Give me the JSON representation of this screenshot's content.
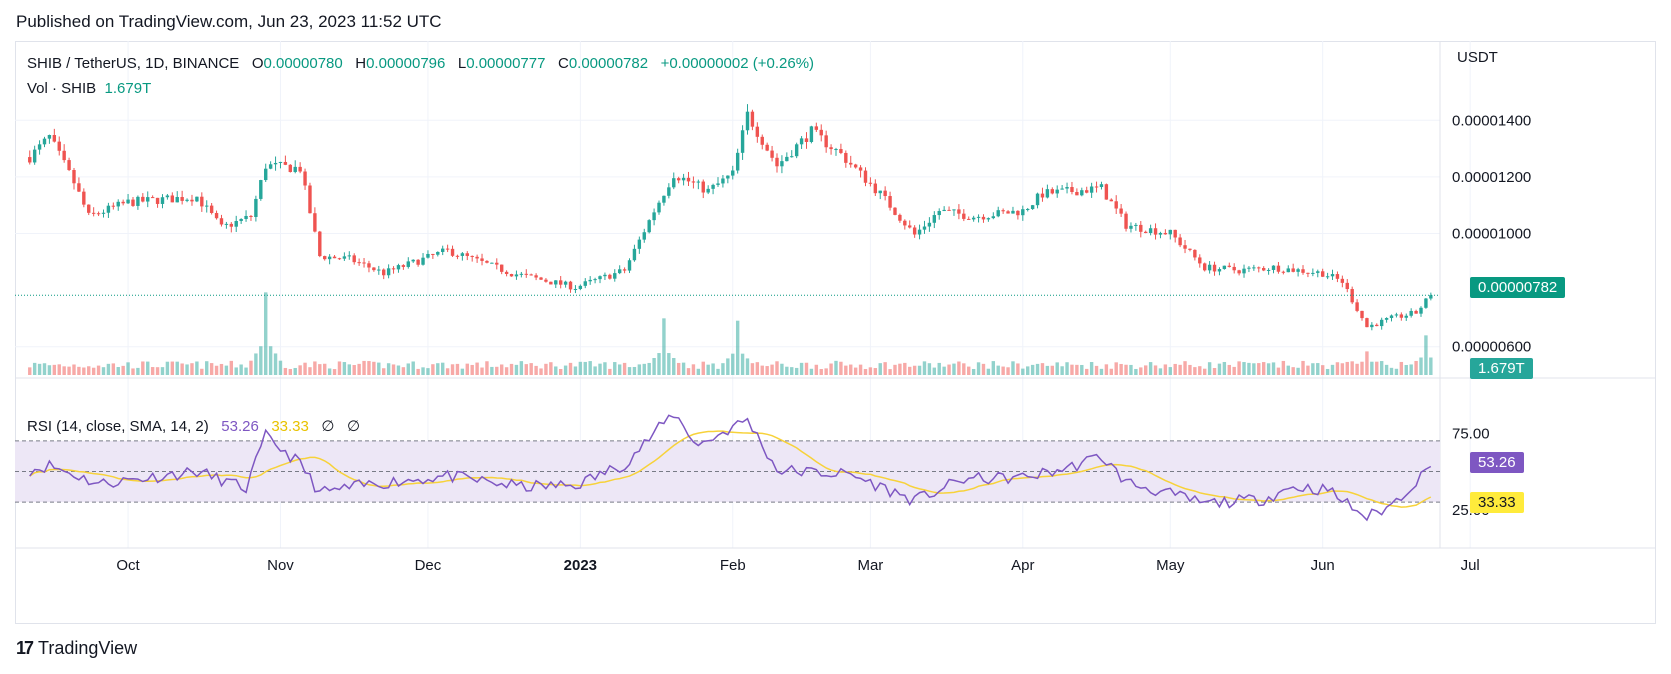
{
  "published": "Published on TradingView.com, Jun 23, 2023 11:52 UTC",
  "brand": {
    "logo": "17",
    "name": "TradingView"
  },
  "colors": {
    "up": "#26a69a",
    "down": "#ef5350",
    "rsi": "#7e57c2",
    "rsi_ma": "#f7d23a",
    "band": "#ede7f6",
    "grid": "#f0f3fa",
    "last_price_badge": "#089981"
  },
  "legend": {
    "symbol": "SHIB / TetherUS, 1D, BINANCE",
    "o_label": "O",
    "o_value": "0.00000780",
    "h_label": "H",
    "h_value": "0.00000796",
    "l_label": "L",
    "l_value": "0.00000777",
    "c_label": "C",
    "c_value": "0.00000782",
    "change": "+0.00000002 (+0.26%)",
    "vol_label": "Vol · SHIB",
    "vol_value": "1.679T",
    "rsi_label": "RSI (14, close, SMA, 14, 2)",
    "rsi_value": "53.26",
    "rsi_ma_value": "33.33",
    "rsi_extra1": "∅",
    "rsi_extra2": "∅"
  },
  "badges": {
    "last_price": "0.00000782",
    "volume": "1.679T",
    "rsi": "53.26",
    "rsi_ma": "33.33"
  },
  "chart_data": {
    "type": "candlestick",
    "price_axis": {
      "currency": "USDT",
      "ticks": [
        "0.00001400",
        "0.00001200",
        "0.00001000",
        "0.00000600"
      ],
      "tick_values": [
        1.4e-05,
        1.2e-05,
        1e-05,
        6e-06
      ]
    },
    "time_axis": {
      "ticks": [
        "Oct",
        "Nov",
        "Dec",
        "2023",
        "Feb",
        "Mar",
        "Apr",
        "May",
        "Jun",
        "Jul"
      ]
    },
    "last_close": 7.82e-06,
    "price_keypoints": [
      {
        "date": "2022-09-11",
        "close": 1.27e-05
      },
      {
        "date": "2022-09-15",
        "close": 1.34e-05
      },
      {
        "date": "2022-09-20",
        "close": 1.18e-05
      },
      {
        "date": "2022-09-23",
        "close": 1.06e-05
      },
      {
        "date": "2022-10-01",
        "close": 1.11e-05
      },
      {
        "date": "2022-10-15",
        "close": 1.13e-05
      },
      {
        "date": "2022-10-20",
        "close": 1.02e-05
      },
      {
        "date": "2022-10-26",
        "close": 1.06e-05
      },
      {
        "date": "2022-10-29",
        "close": 1.24e-05
      },
      {
        "date": "2022-11-05",
        "close": 1.23e-05
      },
      {
        "date": "2022-11-09",
        "close": 9.2e-06
      },
      {
        "date": "2022-11-15",
        "close": 9.1e-06
      },
      {
        "date": "2022-11-22",
        "close": 8.6e-06
      },
      {
        "date": "2022-12-05",
        "close": 9.4e-06
      },
      {
        "date": "2022-12-18",
        "close": 8.6e-06
      },
      {
        "date": "2022-12-31",
        "close": 8.1e-06
      },
      {
        "date": "2023-01-10",
        "close": 8.7e-06
      },
      {
        "date": "2023-01-16",
        "close": 1.08e-05
      },
      {
        "date": "2023-01-20",
        "close": 1.21e-05
      },
      {
        "date": "2023-01-27",
        "close": 1.15e-05
      },
      {
        "date": "2023-02-01",
        "close": 1.21e-05
      },
      {
        "date": "2023-02-04",
        "close": 1.42e-05
      },
      {
        "date": "2023-02-10",
        "close": 1.24e-05
      },
      {
        "date": "2023-02-17",
        "close": 1.36e-05
      },
      {
        "date": "2023-02-23",
        "close": 1.28e-05
      },
      {
        "date": "2023-03-03",
        "close": 1.14e-05
      },
      {
        "date": "2023-03-10",
        "close": 9.95e-06
      },
      {
        "date": "2023-03-15",
        "close": 1.08e-05
      },
      {
        "date": "2023-03-22",
        "close": 1.06e-05
      },
      {
        "date": "2023-04-01",
        "close": 1.08e-05
      },
      {
        "date": "2023-04-05",
        "close": 1.14e-05
      },
      {
        "date": "2023-04-17",
        "close": 1.16e-05
      },
      {
        "date": "2023-04-22",
        "close": 1.03e-05
      },
      {
        "date": "2023-05-01",
        "close": 1e-05
      },
      {
        "date": "2023-05-08",
        "close": 8.8e-06
      },
      {
        "date": "2023-05-15",
        "close": 8.7e-06
      },
      {
        "date": "2023-05-22",
        "close": 8.8e-06
      },
      {
        "date": "2023-06-01",
        "close": 8.6e-06
      },
      {
        "date": "2023-06-05",
        "close": 8.3e-06
      },
      {
        "date": "2023-06-10",
        "close": 6.7e-06
      },
      {
        "date": "2023-06-15",
        "close": 7e-06
      },
      {
        "date": "2023-06-20",
        "close": 7.2e-06
      },
      {
        "date": "2023-06-23",
        "close": 7.82e-06
      }
    ],
    "volume_spikes": [
      {
        "date": "2022-10-29",
        "volume": 3.5
      },
      {
        "date": "2023-01-18",
        "volume": 2.4
      },
      {
        "date": "2023-02-02",
        "volume": 2.3
      },
      {
        "date": "2023-06-10",
        "volume": 1.0
      },
      {
        "date": "2023-06-22",
        "volume": 1.679
      }
    ],
    "rsi": {
      "ticks": [
        "75.00",
        "25.00"
      ],
      "upper_band": 70,
      "lower_band": 30,
      "mid": 50,
      "last_rsi": 53.26,
      "last_ma": 33.33,
      "keypoints": [
        {
          "date": "2022-09-11",
          "rsi": 51
        },
        {
          "date": "2022-09-15",
          "rsi": 54
        },
        {
          "date": "2022-09-25",
          "rsi": 42
        },
        {
          "date": "2022-10-15",
          "rsi": 50
        },
        {
          "date": "2022-10-25",
          "rsi": 39
        },
        {
          "date": "2022-10-29",
          "rsi": 73
        },
        {
          "date": "2022-11-05",
          "rsi": 55
        },
        {
          "date": "2022-11-09",
          "rsi": 36
        },
        {
          "date": "2022-11-20",
          "rsi": 42
        },
        {
          "date": "2022-12-05",
          "rsi": 47
        },
        {
          "date": "2022-12-20",
          "rsi": 40
        },
        {
          "date": "2022-12-31",
          "rsi": 41
        },
        {
          "date": "2023-01-10",
          "rsi": 55
        },
        {
          "date": "2023-01-20",
          "rsi": 88
        },
        {
          "date": "2023-01-25",
          "rsi": 67
        },
        {
          "date": "2023-02-04",
          "rsi": 84
        },
        {
          "date": "2023-02-10",
          "rsi": 51
        },
        {
          "date": "2023-02-25",
          "rsi": 48
        },
        {
          "date": "2023-03-10",
          "rsi": 31
        },
        {
          "date": "2023-03-20",
          "rsi": 45
        },
        {
          "date": "2023-04-01",
          "rsi": 46
        },
        {
          "date": "2023-04-10",
          "rsi": 52
        },
        {
          "date": "2023-04-17",
          "rsi": 60
        },
        {
          "date": "2023-04-22",
          "rsi": 43
        },
        {
          "date": "2023-05-08",
          "rsi": 29
        },
        {
          "date": "2023-05-20",
          "rsi": 32
        },
        {
          "date": "2023-05-26",
          "rsi": 40
        },
        {
          "date": "2023-06-02",
          "rsi": 38
        },
        {
          "date": "2023-06-10",
          "rsi": 20
        },
        {
          "date": "2023-06-15",
          "rsi": 28
        },
        {
          "date": "2023-06-23",
          "rsi": 53.26
        }
      ]
    }
  }
}
